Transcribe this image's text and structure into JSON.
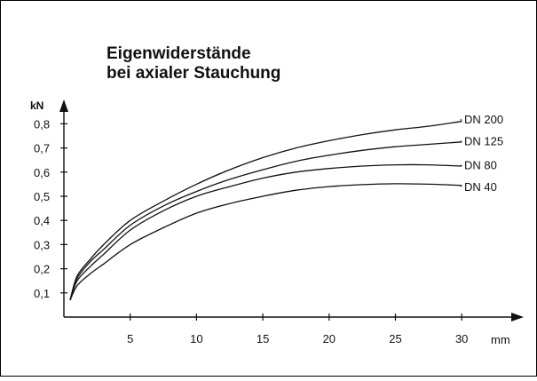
{
  "chart_data": {
    "type": "line",
    "title_lines": [
      "Eigenwiderstände",
      "bei axialer Stauchung"
    ],
    "xlabel": "",
    "x_unit": "mm",
    "ylabel": "kN",
    "xlim": [
      0,
      30
    ],
    "ylim": [
      0,
      0.85
    ],
    "x_ticks": [
      5,
      10,
      15,
      20,
      25,
      30
    ],
    "x_tick_labels": [
      "5",
      "10",
      "15",
      "20",
      "25",
      "30"
    ],
    "y_ticks": [
      0.1,
      0.2,
      0.3,
      0.4,
      0.5,
      0.6,
      0.7,
      0.8
    ],
    "y_tick_labels": [
      "0,1",
      "0,2",
      "0,3",
      "0,4",
      "0,5",
      "0,6",
      "0,7",
      "0,8"
    ],
    "grid": false,
    "legend": "inline-right",
    "series": [
      {
        "name": "DN 200",
        "x": [
          0,
          1,
          2,
          3,
          5,
          7.5,
          10,
          12.5,
          15,
          17.5,
          20,
          22.5,
          25,
          27.5,
          30
        ],
        "values": [
          0.07,
          0.17,
          0.24,
          0.3,
          0.4,
          0.48,
          0.55,
          0.61,
          0.66,
          0.7,
          0.73,
          0.755,
          0.775,
          0.79,
          0.81
        ]
      },
      {
        "name": "DN 125",
        "x": [
          0,
          1,
          2,
          3,
          5,
          7.5,
          10,
          12.5,
          15,
          17.5,
          20,
          22.5,
          25,
          27.5,
          30
        ],
        "values": [
          0.07,
          0.16,
          0.23,
          0.28,
          0.38,
          0.46,
          0.52,
          0.57,
          0.61,
          0.645,
          0.67,
          0.69,
          0.705,
          0.715,
          0.725
        ]
      },
      {
        "name": "DN  80",
        "x": [
          0,
          1,
          2,
          3,
          5,
          7.5,
          10,
          12.5,
          15,
          17.5,
          20,
          22.5,
          25,
          27.5,
          30
        ],
        "values": [
          0.07,
          0.15,
          0.21,
          0.26,
          0.36,
          0.44,
          0.5,
          0.54,
          0.575,
          0.6,
          0.615,
          0.625,
          0.63,
          0.63,
          0.625
        ]
      },
      {
        "name": "DN  40",
        "x": [
          0,
          1,
          2,
          3,
          5,
          7.5,
          10,
          12.5,
          15,
          17.5,
          20,
          22.5,
          25,
          27.5,
          30
        ],
        "values": [
          0.07,
          0.13,
          0.18,
          0.22,
          0.3,
          0.37,
          0.43,
          0.47,
          0.5,
          0.525,
          0.54,
          0.548,
          0.552,
          0.55,
          0.545
        ]
      }
    ],
    "series_label_values": [
      0.82,
      0.73,
      0.63,
      0.54
    ]
  }
}
